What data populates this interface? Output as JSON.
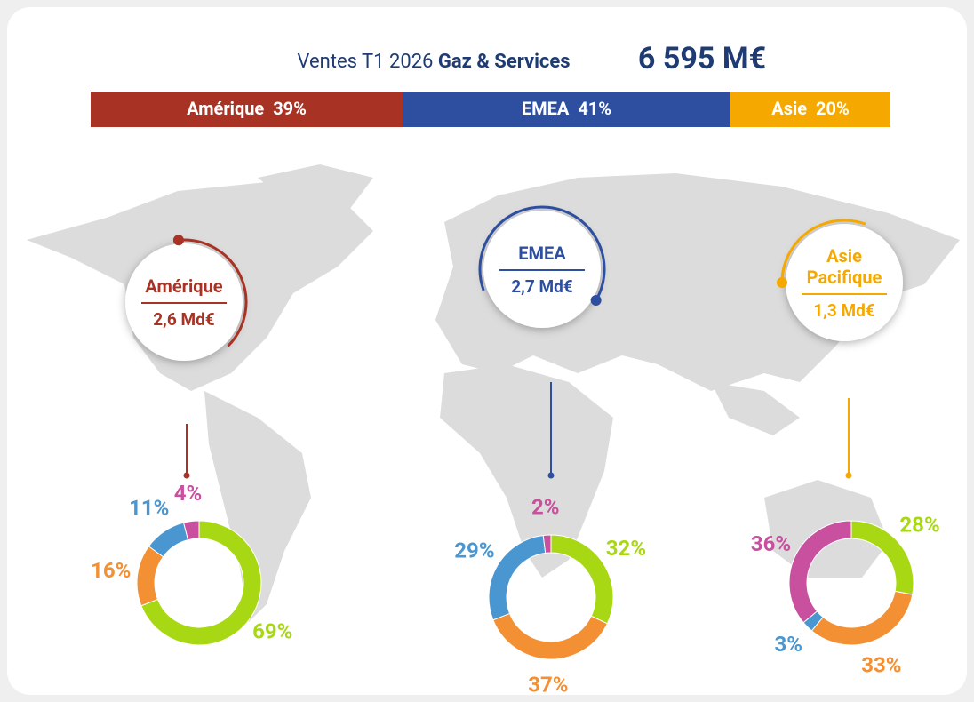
{
  "header": {
    "title": "Ventes T1 2026",
    "title_bold": "Gaz & Services",
    "total": "6 595 M€"
  },
  "chart_data": [
    {
      "type": "stacked-bar",
      "categories": [
        "Amérique",
        "EMEA",
        "Asie"
      ],
      "values": [
        39,
        41,
        20
      ],
      "value_labels": [
        "39%",
        "41%",
        "20%"
      ],
      "colors": [
        "#a83224",
        "#2e4fa0",
        "#f5a800"
      ]
    },
    {
      "type": "donut",
      "title": "Amérique",
      "subtitle": "2,6 Md€",
      "color": "#a83224",
      "values": [
        69,
        16,
        11,
        4
      ],
      "value_labels": [
        "69%",
        "16%",
        "11%",
        "4%"
      ],
      "colors": [
        "#a8d814",
        "#f39033",
        "#4a96d0",
        "#c8509e"
      ]
    },
    {
      "type": "donut",
      "title": "EMEA",
      "subtitle": "2,7 Md€",
      "color": "#2e4fa0",
      "values": [
        32,
        37,
        29,
        2
      ],
      "value_labels": [
        "32%",
        "37%",
        "29%",
        "2%"
      ],
      "colors": [
        "#a8d814",
        "#f39033",
        "#4a96d0",
        "#c8509e"
      ]
    },
    {
      "type": "donut",
      "title": "Asie Pacifique",
      "subtitle": "1,3 Md€",
      "color": "#f5a800",
      "values": [
        28,
        33,
        3,
        36
      ],
      "value_labels": [
        "28%",
        "33%",
        "3%",
        "36%"
      ],
      "colors": [
        "#a8d814",
        "#f39033",
        "#4a96d0",
        "#c8509e"
      ]
    }
  ]
}
